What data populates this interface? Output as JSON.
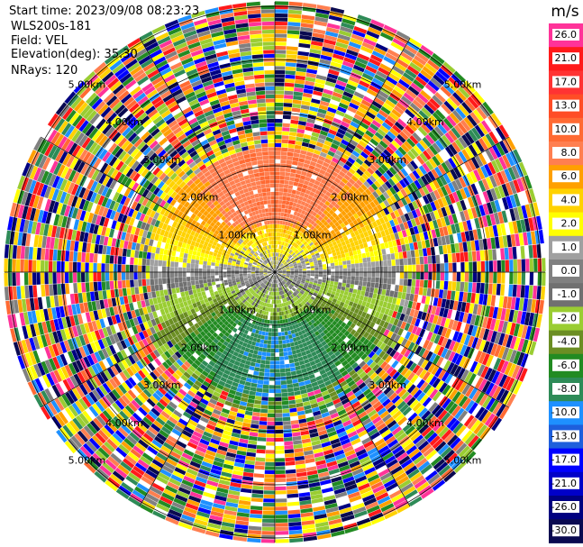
{
  "header": {
    "start_time": "Start time: 2023/09/08 08:23:23",
    "instrument": "WLS200s-181",
    "field": "Field: VEL",
    "elevation": "Elevation(deg): 35.30",
    "nrays": "NRays: 120"
  },
  "chart_data": {
    "type": "heatmap",
    "projection": "polar-ppi",
    "title": "",
    "field": "VEL",
    "n_rays": 120,
    "elevation_deg": 35.3,
    "range_rings_km": [
      1,
      2,
      3,
      4,
      5
    ],
    "ring_labels": [
      "1.00km",
      "2.00km",
      "3.00km",
      "4.00km",
      "5.00km"
    ],
    "azimuth_spokes_deg": [
      0,
      30,
      60,
      90,
      120,
      150,
      180,
      210,
      240,
      270,
      300,
      330
    ],
    "grid": true,
    "colorbar": {
      "unit_label": "m/s",
      "position": "right",
      "ticks": [
        "26.0",
        "21.0",
        "17.0",
        "13.0",
        "10.0",
        "8.0",
        "6.0",
        "4.0",
        "2.0",
        "1.0",
        "0.0",
        "-1.0",
        "-2.0",
        "-4.0",
        "-6.0",
        "-8.0",
        "-10.0",
        "-13.0",
        "-17.0",
        "-21.0",
        "-26.0",
        "-30.0"
      ],
      "colors": [
        "#ff3399",
        "#ff1a1a",
        "#ff3333",
        "#ff4d26",
        "#ff6a33",
        "#ff7f50",
        "#ffa000",
        "#ffd200",
        "#ffff00",
        "#a0a0a0",
        "#808080",
        "#707070",
        "#9acd32",
        "#6b8e23",
        "#228b22",
        "#2e8b57",
        "#1e90ff",
        "#1e5fdc",
        "#0000ff",
        "#0000c8",
        "#000080",
        "#0a0a50"
      ]
    },
    "velocity_pattern": {
      "inner_range_km": 2.3,
      "noisy_beyond_km": 2.6,
      "positive_core_ms": 8.0,
      "positive_core_azimuth_deg": 0,
      "negative_core_ms": -10.0,
      "negative_core_azimuth_deg": 180,
      "center_near_zero": true
    }
  }
}
